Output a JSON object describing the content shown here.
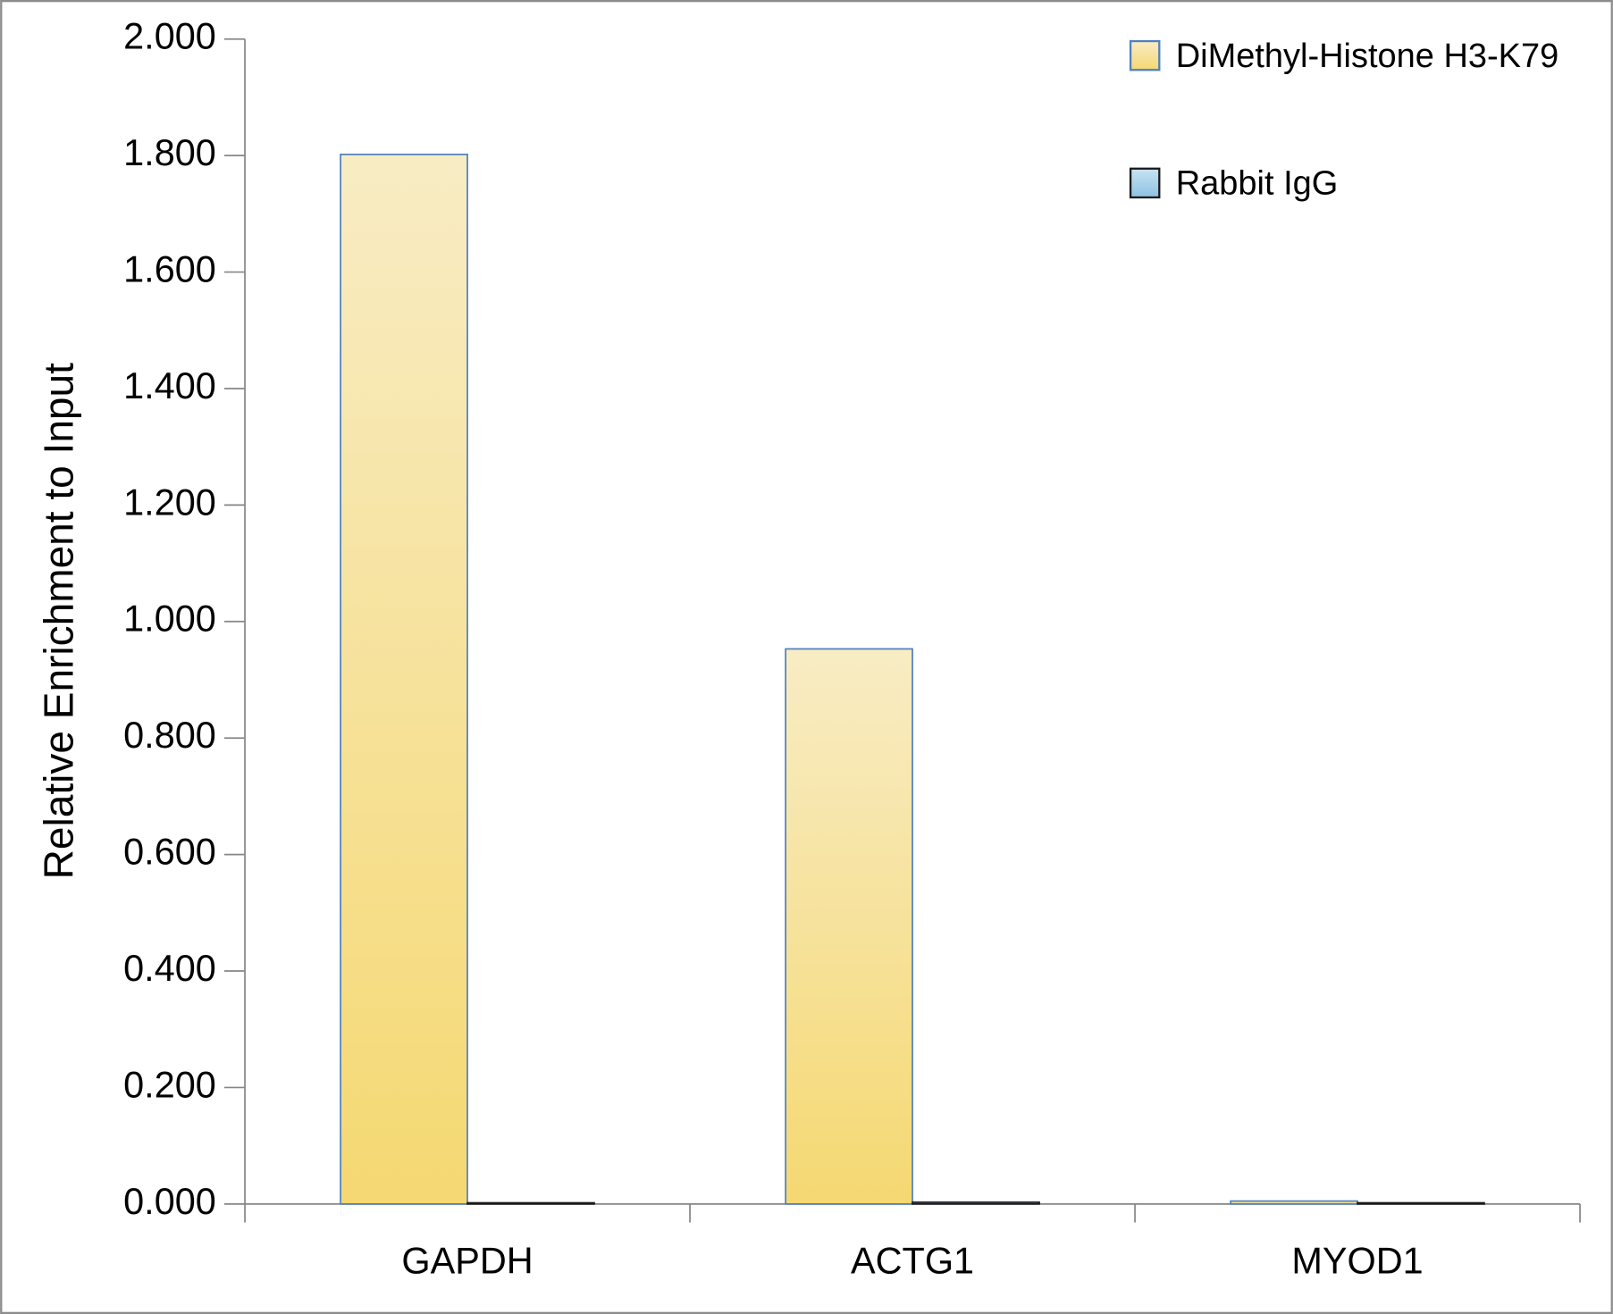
{
  "chart_data": {
    "type": "bar",
    "y_label": "Relative Enrichment to Input",
    "categories": [
      "GAPDH",
      "ACTG1",
      "MYOD1"
    ],
    "series": [
      {
        "name": "DiMethyl-Histone H3-K79",
        "color": "#f6d97c",
        "values": [
          1.802,
          0.953,
          0.005
        ]
      },
      {
        "name": "Rabbit IgG",
        "color": "#9ccbe6",
        "values": [
          0.002,
          0.003,
          0.002
        ]
      }
    ],
    "ylim": [
      0,
      2
    ],
    "yticks": [
      {
        "value": 0,
        "label": "0.000"
      },
      {
        "value": 0.2,
        "label": "0.200"
      },
      {
        "value": 0.4,
        "label": "0.400"
      },
      {
        "value": 0.6,
        "label": "0.600"
      },
      {
        "value": 0.8,
        "label": "0.800"
      },
      {
        "value": 1.0,
        "label": "1.000"
      },
      {
        "value": 1.2,
        "label": "1.200"
      },
      {
        "value": 1.4,
        "label": "1.400"
      },
      {
        "value": 1.6,
        "label": "1.600"
      },
      {
        "value": 1.8,
        "label": "1.800"
      },
      {
        "value": 2.0,
        "label": "2.000"
      }
    ],
    "grid": false,
    "legend": "top-right"
  }
}
